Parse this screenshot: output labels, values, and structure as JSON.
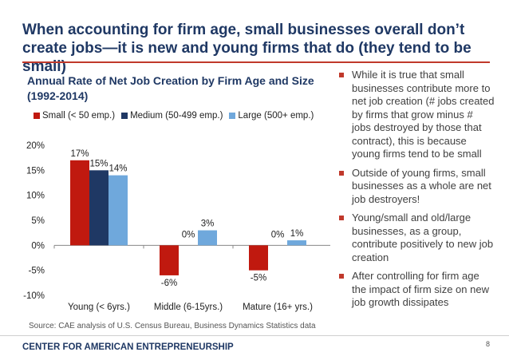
{
  "slide": {
    "title": "When accounting for firm age, small businesses overall don’t create jobs—it is new and young firms that do (they tend to be small)",
    "page_number": "8",
    "footer": "CENTER FOR AMERICAN ENTREPRENEURSHIP",
    "source": "Source: CAE analysis of U.S. Census Bureau, Business Dynamics Statistics data"
  },
  "bullets": [
    "While it is true that small businesses contribute more to net job creation (# jobs created by firms that grow minus # jobs destroyed by those that contract), this is because young firms tend to be small",
    "Outside of young firms, small businesses as a whole are net job destroyers!",
    "Young/small and old/large businesses, as a group, contribute positively to new job creation",
    "After controlling for firm age the impact of firm size on new job growth dissipates"
  ],
  "colors": {
    "accent": "#c0392b",
    "title": "#1f3864"
  },
  "chart_data": {
    "type": "bar",
    "title": "Annual Rate of Net Job Creation by Firm Age and Size (1992-2014)",
    "categories": [
      "Young (< 6yrs.)",
      "Middle (6-15yrs.)",
      "Mature (16+ yrs.)"
    ],
    "series": [
      {
        "name": "Small (< 50 emp.)",
        "color": "#c0190f",
        "values": [
          17,
          -6,
          -5
        ],
        "labels": [
          "17%",
          "-6%",
          "-5%"
        ]
      },
      {
        "name": "Medium (50-499 emp.)",
        "color": "#1f3864",
        "values": [
          15,
          0,
          0
        ],
        "labels": [
          "15%",
          "0%",
          "0%"
        ]
      },
      {
        "name": "Large (500+ emp.)",
        "color": "#6fa8dc",
        "values": [
          14,
          3,
          1
        ],
        "labels": [
          "14%",
          "3%",
          "1%"
        ]
      }
    ],
    "yticks": [
      20,
      15,
      10,
      5,
      0,
      -5,
      -10
    ],
    "ytick_labels": [
      "20%",
      "15%",
      "10%",
      "5%",
      "0%",
      "-5%",
      "-10%"
    ],
    "ylim": [
      -10,
      20
    ],
    "legend_position": "top",
    "grid": false
  }
}
